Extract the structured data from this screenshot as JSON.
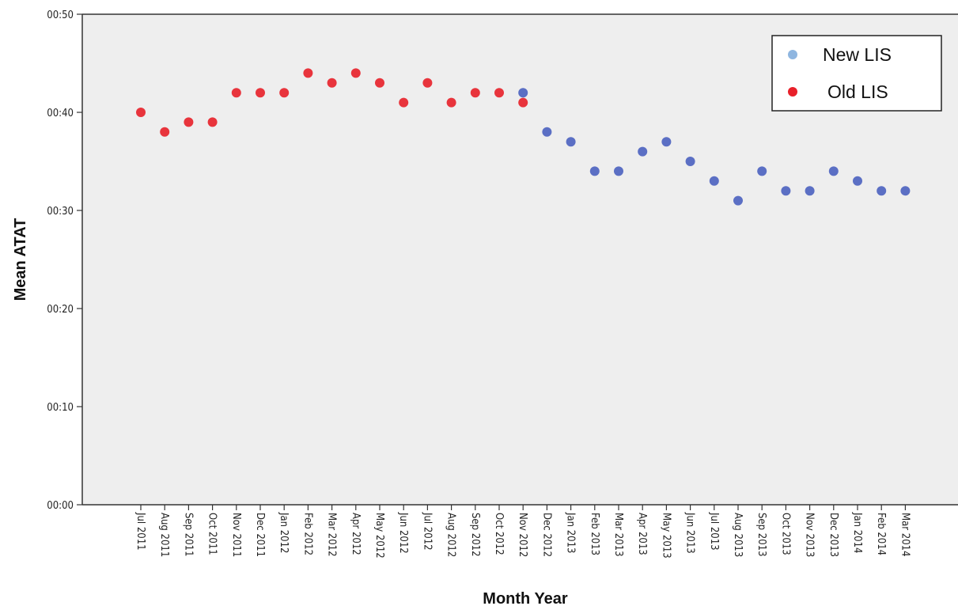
{
  "chart_data": {
    "type": "scatter",
    "xlabel": "Month Year",
    "ylabel": "Mean ATAT",
    "categories": [
      "Jul 2011",
      "Aug 2011",
      "Sep 2011",
      "Oct 2011",
      "Nov 2011",
      "Dec 2011",
      "Jan 2012",
      "Feb 2012",
      "Mar 2012",
      "Apr 2012",
      "May 2012",
      "Jun 2012",
      "Jul 2012",
      "Aug 2012",
      "Sep 2012",
      "Oct 2012",
      "Nov 2012",
      "Dec 2012",
      "Jan 2013",
      "Feb 2013",
      "Mar 2013",
      "Apr 2013",
      "May 2013",
      "Jun 2013",
      "Jul 2013",
      "Aug 2013",
      "Sep 2013",
      "Oct 2013",
      "Nov 2013",
      "Dec 2013",
      "Jan 2014",
      "Feb 2014",
      "Mar 2014"
    ],
    "y_ticks": [
      "00:00",
      "00:10",
      "00:20",
      "00:30",
      "00:40",
      "00:50"
    ],
    "ylim_minutes": [
      0,
      50
    ],
    "grid": false,
    "legend_position": "top-right",
    "series": [
      {
        "name": "New LIS",
        "legend_color": "#8fb6e0",
        "color": "#5b6fc4",
        "points": [
          {
            "x": "Nov 2012",
            "y": 42
          },
          {
            "x": "Dec 2012",
            "y": 38
          },
          {
            "x": "Jan 2013",
            "y": 37
          },
          {
            "x": "Feb 2013",
            "y": 34
          },
          {
            "x": "Mar 2013",
            "y": 34
          },
          {
            "x": "Apr 2013",
            "y": 36
          },
          {
            "x": "May 2013",
            "y": 37
          },
          {
            "x": "Jun 2013",
            "y": 35
          },
          {
            "x": "Jul 2013",
            "y": 33
          },
          {
            "x": "Aug 2013",
            "y": 31
          },
          {
            "x": "Sep 2013",
            "y": 34
          },
          {
            "x": "Oct 2013",
            "y": 32
          },
          {
            "x": "Nov 2013",
            "y": 32
          },
          {
            "x": "Dec 2013",
            "y": 34
          },
          {
            "x": "Jan 2014",
            "y": 33
          },
          {
            "x": "Feb 2014",
            "y": 32
          },
          {
            "x": "Mar 2014",
            "y": 32
          }
        ]
      },
      {
        "name": "Old LIS",
        "legend_color": "#e8202a",
        "color": "#e8343c",
        "points": [
          {
            "x": "Jul 2011",
            "y": 40
          },
          {
            "x": "Aug 2011",
            "y": 38
          },
          {
            "x": "Sep 2011",
            "y": 39
          },
          {
            "x": "Oct 2011",
            "y": 39
          },
          {
            "x": "Nov 2011",
            "y": 42
          },
          {
            "x": "Dec 2011",
            "y": 42
          },
          {
            "x": "Jan 2012",
            "y": 42
          },
          {
            "x": "Feb 2012",
            "y": 44
          },
          {
            "x": "Mar 2012",
            "y": 43
          },
          {
            "x": "Apr 2012",
            "y": 44
          },
          {
            "x": "May 2012",
            "y": 43
          },
          {
            "x": "Jun 2012",
            "y": 41
          },
          {
            "x": "Jul 2012",
            "y": 43
          },
          {
            "x": "Aug 2012",
            "y": 41
          },
          {
            "x": "Sep 2012",
            "y": 42
          },
          {
            "x": "Oct 2012",
            "y": 42
          },
          {
            "x": "Nov 2012",
            "y": 41
          }
        ]
      }
    ],
    "legend_order": [
      "New LIS",
      "Old LIS"
    ]
  },
  "plot_background": "#eeeeee"
}
